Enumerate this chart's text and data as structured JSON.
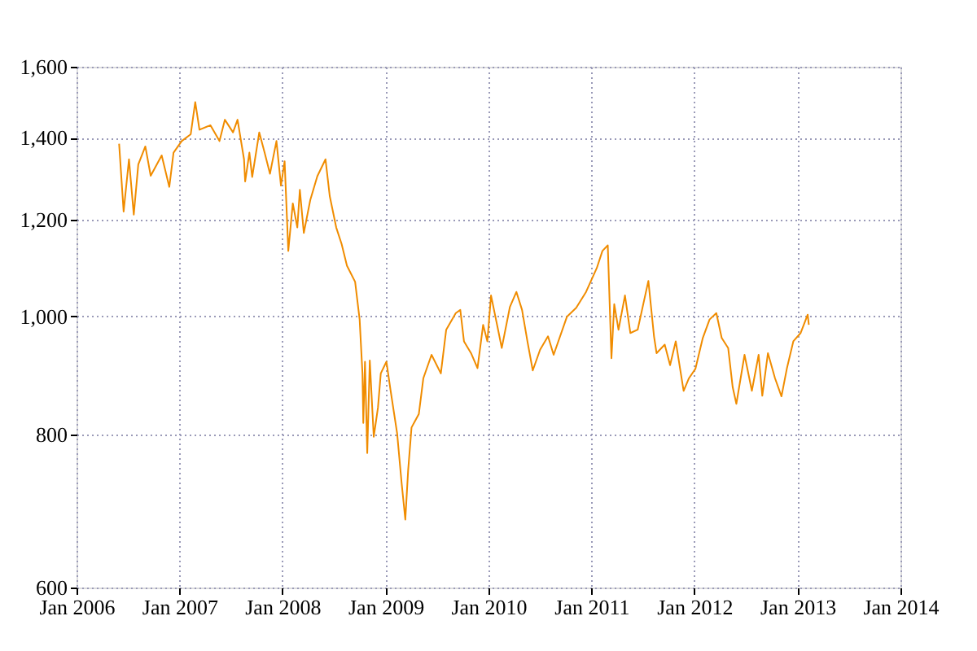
{
  "chart_data": {
    "type": "line",
    "x": [
      "2006-06-01",
      "2006-06-17",
      "2006-07-06",
      "2006-07-23",
      "2006-08-08",
      "2006-09-02",
      "2006-09-21",
      "2006-10-30",
      "2006-11-26",
      "2006-12-11",
      "2007-01-09",
      "2007-02-10",
      "2007-02-26",
      "2007-03-13",
      "2007-04-21",
      "2007-05-23",
      "2007-06-11",
      "2007-07-10",
      "2007-07-26",
      "2007-08-18",
      "2007-08-22",
      "2007-09-06",
      "2007-09-16",
      "2007-10-11",
      "2007-10-30",
      "2007-11-18",
      "2007-12-11",
      "2007-12-27",
      "2008-01-09",
      "2008-01-22",
      "2008-02-07",
      "2008-02-23",
      "2008-03-03",
      "2008-03-17",
      "2008-04-09",
      "2008-05-04",
      "2008-06-02",
      "2008-06-17",
      "2008-07-10",
      "2008-07-29",
      "2008-08-17",
      "2008-09-15",
      "2008-10-01",
      "2008-10-11",
      "2008-10-14",
      "2008-10-20",
      "2008-10-28",
      "2008-11-06",
      "2008-11-20",
      "2008-12-05",
      "2008-12-15",
      "2009-01-04",
      "2009-01-19",
      "2009-02-11",
      "2009-02-27",
      "2009-03-12",
      "2009-03-22",
      "2009-04-03",
      "2009-04-29",
      "2009-05-15",
      "2009-06-13",
      "2009-07-16",
      "2009-08-04",
      "2009-09-07",
      "2009-09-23",
      "2009-10-06",
      "2009-10-31",
      "2009-11-23",
      "2009-12-13",
      "2009-12-28",
      "2010-01-10",
      "2010-02-04",
      "2010-02-17",
      "2010-03-18",
      "2010-04-10",
      "2010-04-30",
      "2010-05-19",
      "2010-06-07",
      "2010-07-03",
      "2010-07-31",
      "2010-08-20",
      "2010-10-06",
      "2010-11-08",
      "2010-12-13",
      "2011-01-20",
      "2011-02-09",
      "2011-02-28",
      "2011-03-13",
      "2011-03-23",
      "2011-04-07",
      "2011-04-30",
      "2011-05-19",
      "2011-06-14",
      "2011-07-22",
      "2011-08-11",
      "2011-08-20",
      "2011-09-18",
      "2011-10-07",
      "2011-10-27",
      "2011-11-24",
      "2011-12-13",
      "2012-01-05",
      "2012-01-31",
      "2012-02-24",
      "2012-03-19",
      "2012-04-07",
      "2012-04-30",
      "2012-05-16",
      "2012-05-29",
      "2012-06-27",
      "2012-07-23",
      "2012-08-16",
      "2012-08-29",
      "2012-09-18",
      "2012-10-13",
      "2012-11-05",
      "2012-11-24",
      "2012-12-17",
      "2013-01-12",
      "2013-02-06",
      "2013-02-10"
    ],
    "series": [
      {
        "color": "#f08c00",
        "values": [
          1384,
          1218,
          1344,
          1211,
          1331,
          1377,
          1303,
          1354,
          1276,
          1361,
          1391,
          1409,
          1497,
          1421,
          1433,
          1391,
          1448,
          1414,
          1448,
          1344,
          1289,
          1361,
          1300,
          1414,
          1361,
          1308,
          1391,
          1279,
          1339,
          1131,
          1237,
          1182,
          1269,
          1170,
          1245,
          1302,
          1344,
          1254,
          1182,
          1146,
          1100,
          1067,
          994,
          898,
          818,
          918,
          773,
          920,
          797,
          842,
          898,
          918,
          869,
          802,
          730,
          682,
          748,
          811,
          832,
          890,
          930,
          898,
          975,
          1006,
          1012,
          954,
          933,
          907,
          984,
          954,
          1040,
          975,
          942,
          1018,
          1047,
          1012,
          954,
          903,
          939,
          963,
          930,
          999,
          1016,
          1047,
          1095,
          1131,
          1143,
          924,
          1023,
          975,
          1040,
          969,
          975,
          1069,
          963,
          933,
          948,
          912,
          954,
          869,
          890,
          906,
          960,
          994,
          1006,
          960,
          942,
          875,
          848,
          930,
          869,
          930,
          861,
          933,
          890,
          860,
          906,
          954,
          969,
          1003,
          984
        ]
      }
    ],
    "log": true,
    "xlim": [
      "2006-01-01",
      "2014-01-01"
    ],
    "xticks": [
      {
        "value": "2006-01-01",
        "label": "Jan 2006"
      },
      {
        "value": "2007-01-01",
        "label": "Jan 2007"
      },
      {
        "value": "2008-01-01",
        "label": "Jan 2008"
      },
      {
        "value": "2009-01-01",
        "label": "Jan 2009"
      },
      {
        "value": "2010-01-01",
        "label": "Jan 2010"
      },
      {
        "value": "2011-01-01",
        "label": "Jan 2011"
      },
      {
        "value": "2012-01-01",
        "label": "Jan 2012"
      },
      {
        "value": "2013-01-01",
        "label": "Jan 2013"
      },
      {
        "value": "2014-01-01",
        "label": "Jan 2014"
      }
    ],
    "ylim": [
      600,
      1600
    ],
    "yticks": [
      600,
      800,
      {
        "value": 1000,
        "label": "1,000"
      },
      {
        "value": 1200,
        "label": "1,200"
      },
      {
        "value": 1400,
        "label": "1,400"
      },
      {
        "value": 1600,
        "label": "1,600"
      }
    ],
    "grid": true,
    "legend": false,
    "marker": "none",
    "line_style": "solid"
  }
}
